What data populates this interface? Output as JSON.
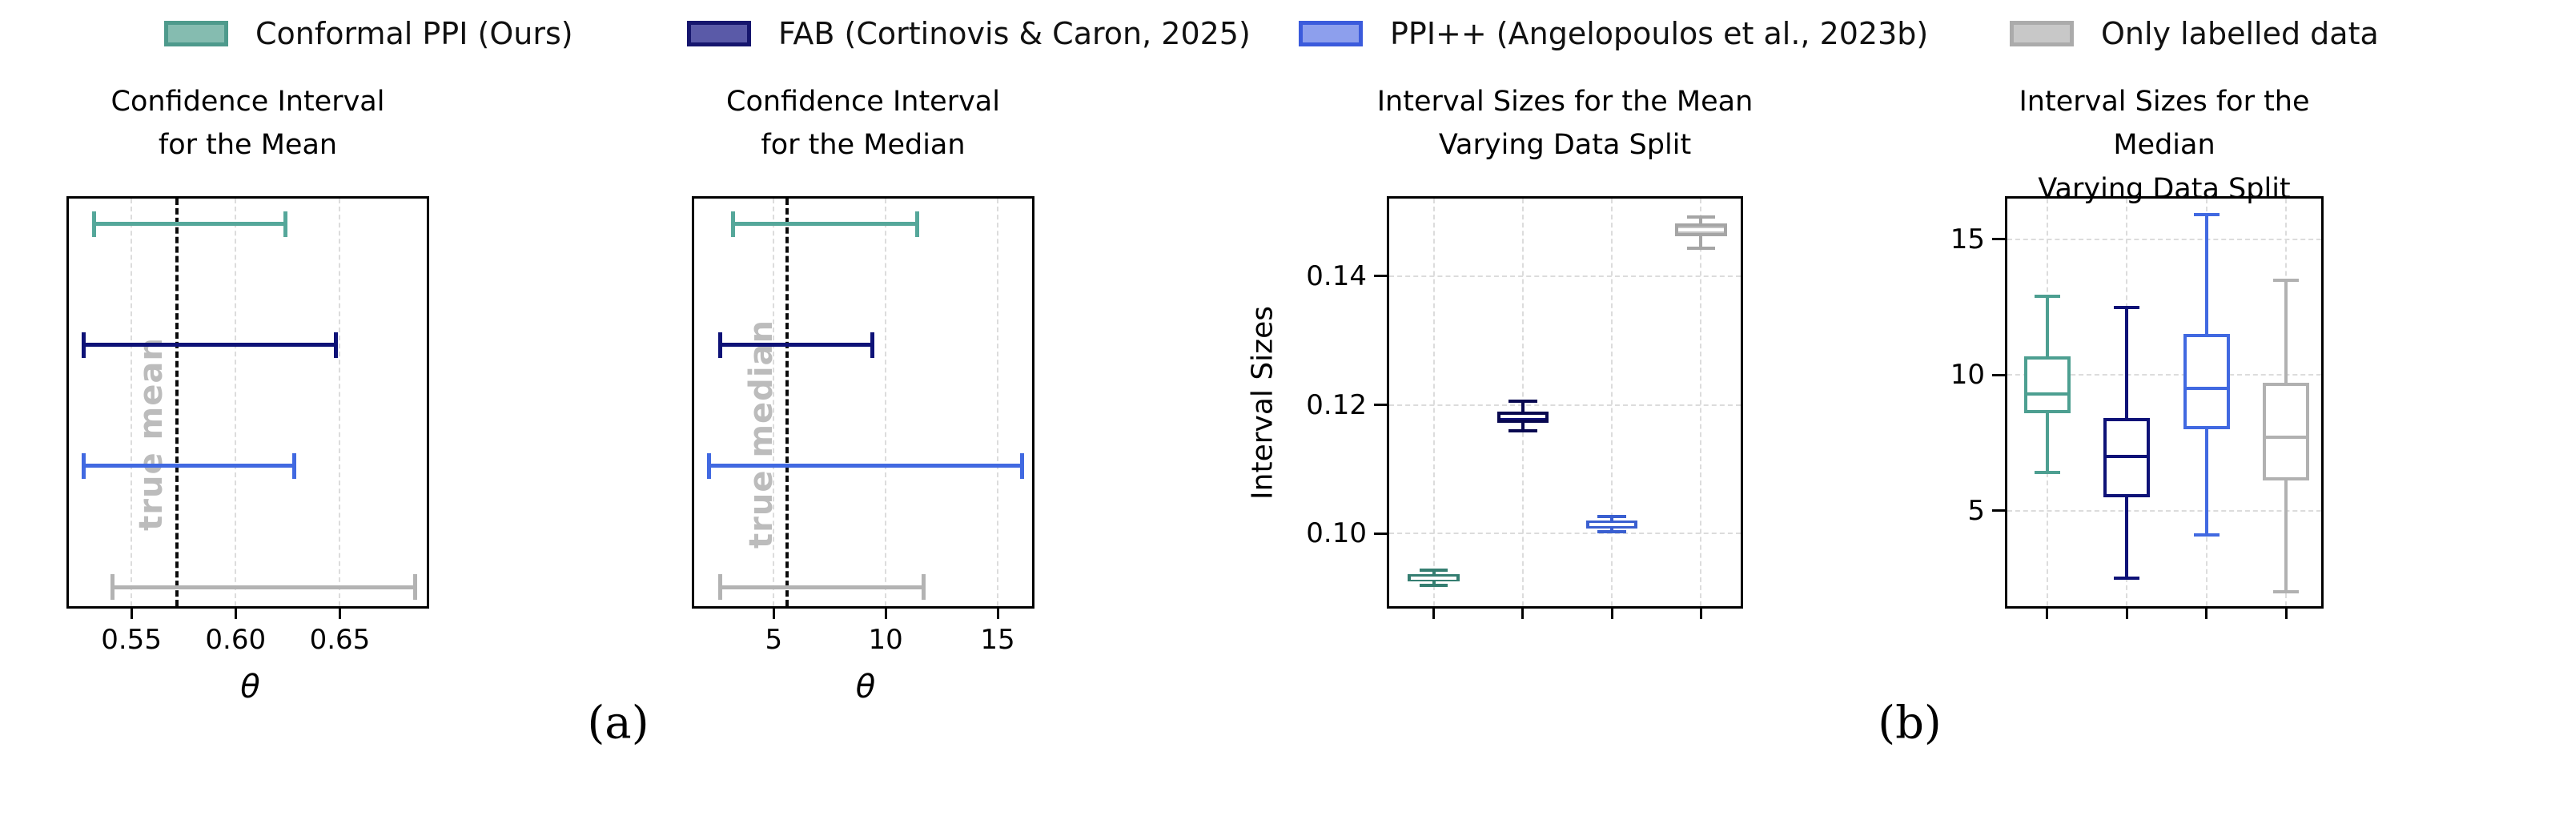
{
  "figure": {
    "background": "#ffffff",
    "panel_labels": {
      "a": "(a)",
      "b": "(b)"
    }
  },
  "legend": {
    "items": [
      {
        "label": "Conformal PPI (Ours)",
        "swatch_fill": "#85bcb0",
        "swatch_edge": "#4e9a8c"
      },
      {
        "label": "FAB (Cortinovis & Caron, 2025)",
        "swatch_fill": "#5a5aa8",
        "swatch_edge": "#16166e"
      },
      {
        "label": "PPI++ (Angelopoulos et al., 2023b)",
        "swatch_fill": "#8d9fed",
        "swatch_edge": "#3b5bdc"
      },
      {
        "label": "Only labelled data",
        "swatch_fill": "#c8c8c8",
        "swatch_edge": "#ababab"
      }
    ]
  },
  "chart_data": [
    {
      "id": "ci-mean",
      "type": "errorbar",
      "title": "Confidence Interval\nfor the Mean",
      "xlabel": "θ",
      "xlim": [
        0.52,
        0.694
      ],
      "xticks": [
        0.55,
        0.6,
        0.65
      ],
      "xtick_labels": [
        "0.55",
        "0.60",
        "0.65"
      ],
      "grid": true,
      "vline": {
        "x": 0.572,
        "label": "true mean"
      },
      "series": [
        {
          "name": "Conformal PPI (Ours)",
          "color": "#55a79a",
          "interval": [
            0.532,
            0.624
          ]
        },
        {
          "name": "FAB (Cortinovis & Caron, 2025)",
          "color": "#0e1277",
          "interval": [
            0.527,
            0.648
          ]
        },
        {
          "name": "PPI++ (Angelopoulos et al., 2023b)",
          "color": "#4169e1",
          "interval": [
            0.527,
            0.628
          ]
        },
        {
          "name": "Only labelled data",
          "color": "#b3b3b3",
          "interval": [
            0.541,
            0.686
          ]
        }
      ]
    },
    {
      "id": "ci-median",
      "type": "errorbar",
      "title": "Confidence Interval\nfor the Median",
      "xlabel": "θ",
      "xlim": [
        1.45,
        16.75
      ],
      "xticks": [
        5,
        10,
        15
      ],
      "xtick_labels": [
        "5",
        "10",
        "15"
      ],
      "grid": true,
      "vline": {
        "x": 5.6,
        "label": "true median"
      },
      "series": [
        {
          "name": "Conformal PPI (Ours)",
          "color": "#55a79a",
          "interval": [
            3.2,
            11.4
          ]
        },
        {
          "name": "FAB (Cortinovis & Caron, 2025)",
          "color": "#0e1277",
          "interval": [
            2.6,
            9.4
          ]
        },
        {
          "name": "PPI++ (Angelopoulos et al., 2023b)",
          "color": "#4169e1",
          "interval": [
            2.1,
            16.1
          ]
        },
        {
          "name": "Only labelled data",
          "color": "#b3b3b3",
          "interval": [
            2.6,
            11.7
          ]
        }
      ]
    },
    {
      "id": "sizes-mean",
      "type": "boxplot",
      "title": "Interval Sizes for the Mean\nVarying Data Split",
      "ylabel": "Interval Sizes",
      "ylim": [
        0.088,
        0.152
      ],
      "yticks": [
        0.1,
        0.12,
        0.14
      ],
      "ytick_labels": [
        "0.10",
        "0.12",
        "0.14"
      ],
      "grid": true,
      "filled": true,
      "median_color": "#ffffff",
      "boxes": [
        {
          "name": "Conformal PPI (Ours)",
          "fill": "#4d9f91",
          "edge": "#357e71",
          "whislo": 0.092,
          "q1": 0.0926,
          "med": 0.0931,
          "q3": 0.0937,
          "whishi": 0.0943
        },
        {
          "name": "FAB (Cortinovis & Caron, 2025)",
          "fill": "#10107a",
          "edge": "#080850",
          "whislo": 0.116,
          "q1": 0.1172,
          "med": 0.1182,
          "q3": 0.119,
          "whishi": 0.1205
        },
        {
          "name": "PPI++ (Angelopoulos et al., 2023b)",
          "fill": "#4f72e4",
          "edge": "#3a5fd0",
          "whislo": 0.1003,
          "q1": 0.1008,
          "med": 0.1014,
          "q3": 0.1021,
          "whishi": 0.1027
        },
        {
          "name": "Only labelled data",
          "fill": "#c2c2c2",
          "edge": "#a5a5a5",
          "whislo": 0.1443,
          "q1": 0.1461,
          "med": 0.1471,
          "q3": 0.1481,
          "whishi": 0.1492
        }
      ]
    },
    {
      "id": "sizes-median",
      "type": "boxplot",
      "title": "Interval Sizes for the Median\nVarying Data Split",
      "ylabel": "",
      "ylim": [
        1.3,
        16.5
      ],
      "yticks": [
        5,
        10,
        15
      ],
      "ytick_labels": [
        "5",
        "10",
        "15"
      ],
      "grid": true,
      "filled": false,
      "boxes": [
        {
          "name": "Conformal PPI (Ours)",
          "fill": "#ffffff",
          "edge": "#4d9f91",
          "whislo": 6.4,
          "q1": 8.6,
          "med": 9.3,
          "q3": 10.7,
          "whishi": 12.9
        },
        {
          "name": "FAB (Cortinovis & Caron, 2025)",
          "fill": "#ffffff",
          "edge": "#0e1277",
          "whislo": 2.5,
          "q1": 5.5,
          "med": 7.0,
          "q3": 8.4,
          "whishi": 12.5
        },
        {
          "name": "PPI++ (Angelopoulos et al., 2023b)",
          "fill": "#ffffff",
          "edge": "#4169e1",
          "whislo": 4.1,
          "q1": 8.0,
          "med": 9.5,
          "q3": 11.5,
          "whishi": 15.9
        },
        {
          "name": "Only labelled data",
          "fill": "#ffffff",
          "edge": "#b1b1b1",
          "whislo": 2.0,
          "q1": 6.1,
          "med": 7.7,
          "q3": 9.7,
          "whishi": 13.5
        }
      ]
    }
  ]
}
